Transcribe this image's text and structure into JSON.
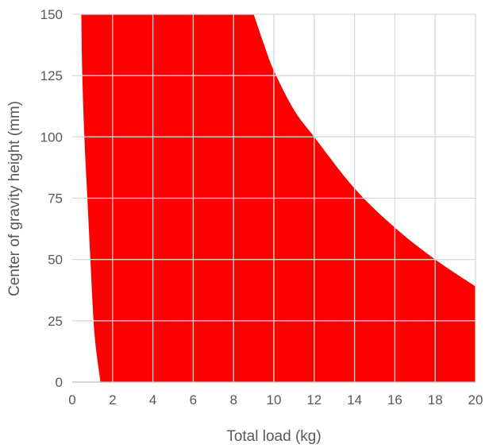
{
  "chart_data": {
    "type": "area",
    "title": "",
    "xlabel": "Total load (kg)",
    "ylabel": "Center of gravity height (mm)",
    "xlim": [
      0,
      20
    ],
    "ylim": [
      0,
      150
    ],
    "x_ticks": [
      0,
      2,
      4,
      6,
      8,
      10,
      12,
      14,
      16,
      18,
      20
    ],
    "y_ticks": [
      0,
      25,
      50,
      75,
      100,
      125,
      150
    ],
    "grid": true,
    "legend": "none",
    "fill_color": "#ff0000",
    "grid_color": "#d9d9d9",
    "series": [
      {
        "name": "",
        "lower_boundary": [
          {
            "x": 1.4,
            "y": 0
          },
          {
            "x": 1.1,
            "y": 20
          },
          {
            "x": 0.9,
            "y": 50
          },
          {
            "x": 0.75,
            "y": 75
          },
          {
            "x": 0.6,
            "y": 100
          },
          {
            "x": 0.5,
            "y": 125
          },
          {
            "x": 0.45,
            "y": 150
          }
        ],
        "upper_boundary": [
          {
            "x": 9.0,
            "y": 150
          },
          {
            "x": 9.5,
            "y": 138
          },
          {
            "x": 10,
            "y": 127
          },
          {
            "x": 11,
            "y": 111
          },
          {
            "x": 12,
            "y": 100
          },
          {
            "x": 14,
            "y": 79
          },
          {
            "x": 16,
            "y": 63
          },
          {
            "x": 18,
            "y": 50
          },
          {
            "x": 20,
            "y": 39
          }
        ],
        "upper_boundary_end": {
          "x": 20,
          "y": 0
        }
      }
    ]
  }
}
